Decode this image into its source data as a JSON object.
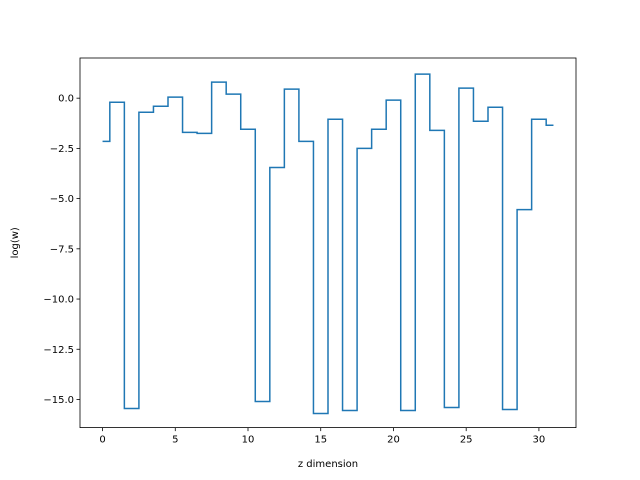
{
  "chart_data": {
    "type": "line",
    "drawstyle": "steps-mid",
    "title": "",
    "xlabel": "z dimension",
    "ylabel": "log(w)",
    "xlim": [
      -1.55,
      32.55
    ],
    "ylim": [
      -16.4,
      2.0
    ],
    "xticks": [
      0,
      5,
      10,
      15,
      20,
      25,
      30
    ],
    "xtick_labels": [
      "0",
      "5",
      "10",
      "15",
      "20",
      "25",
      "30"
    ],
    "yticks": [
      0.0,
      -2.5,
      -5.0,
      -7.5,
      -10.0,
      -12.5,
      -15.0
    ],
    "ytick_labels": [
      "0.0",
      "−2.5",
      "−5.0",
      "−7.5",
      "−10.0",
      "−12.5",
      "−15.0"
    ],
    "grid": false,
    "legend": false,
    "colors": {
      "series": "#1f77b4"
    },
    "series": [
      {
        "x": [
          0,
          1,
          2,
          3,
          4,
          5,
          6,
          7,
          8,
          9,
          10,
          11,
          12,
          13,
          14,
          15,
          16,
          17,
          18,
          19,
          20,
          21,
          22,
          23,
          24,
          25,
          26,
          27,
          28,
          29,
          30,
          31
        ],
        "values": [
          -2.15,
          -0.2,
          -15.45,
          -0.7,
          -0.4,
          0.05,
          -1.7,
          -1.75,
          0.8,
          0.2,
          -1.55,
          -15.1,
          -3.45,
          0.45,
          -2.15,
          -15.7,
          -1.05,
          -15.55,
          -2.5,
          -1.55,
          -0.1,
          -15.55,
          1.2,
          -1.6,
          -15.4,
          0.5,
          -1.15,
          -0.45,
          -15.5,
          -5.55,
          -1.05,
          -1.35
        ]
      }
    ]
  }
}
